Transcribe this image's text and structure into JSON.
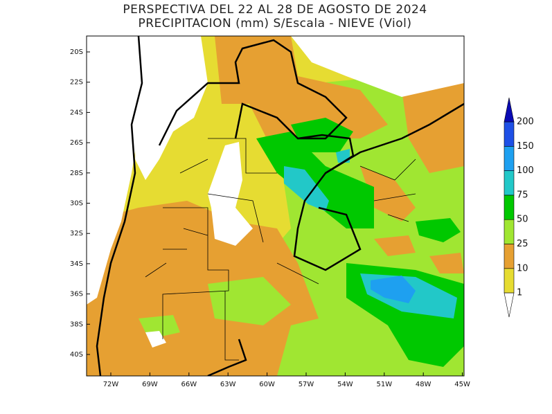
{
  "title": "PERSPECTIVA DEL 22 AL 28 DE AGOSTO DE 2024",
  "subtitle": "PRECIPITACION (mm) S/Escala - NIEVE (Viol)",
  "map": {
    "lat_labels": [
      "20S",
      "22S",
      "24S",
      "26S",
      "28S",
      "30S",
      "32S",
      "34S",
      "36S",
      "38S",
      "40S"
    ],
    "lon_labels": [
      "72W",
      "69W",
      "66W",
      "63W",
      "60W",
      "57W",
      "54W",
      "51W",
      "48W",
      "45W"
    ]
  },
  "colorbar": {
    "levels": [
      1,
      10,
      25,
      50,
      75,
      100,
      150,
      200
    ],
    "colors": [
      "#e6dc32",
      "#e6a032",
      "#a0e632",
      "#00c800",
      "#22c8c8",
      "#1ea0f0",
      "#1e50e6"
    ],
    "under_color": "#ffffff",
    "over_color": "#0a0ab4"
  }
}
